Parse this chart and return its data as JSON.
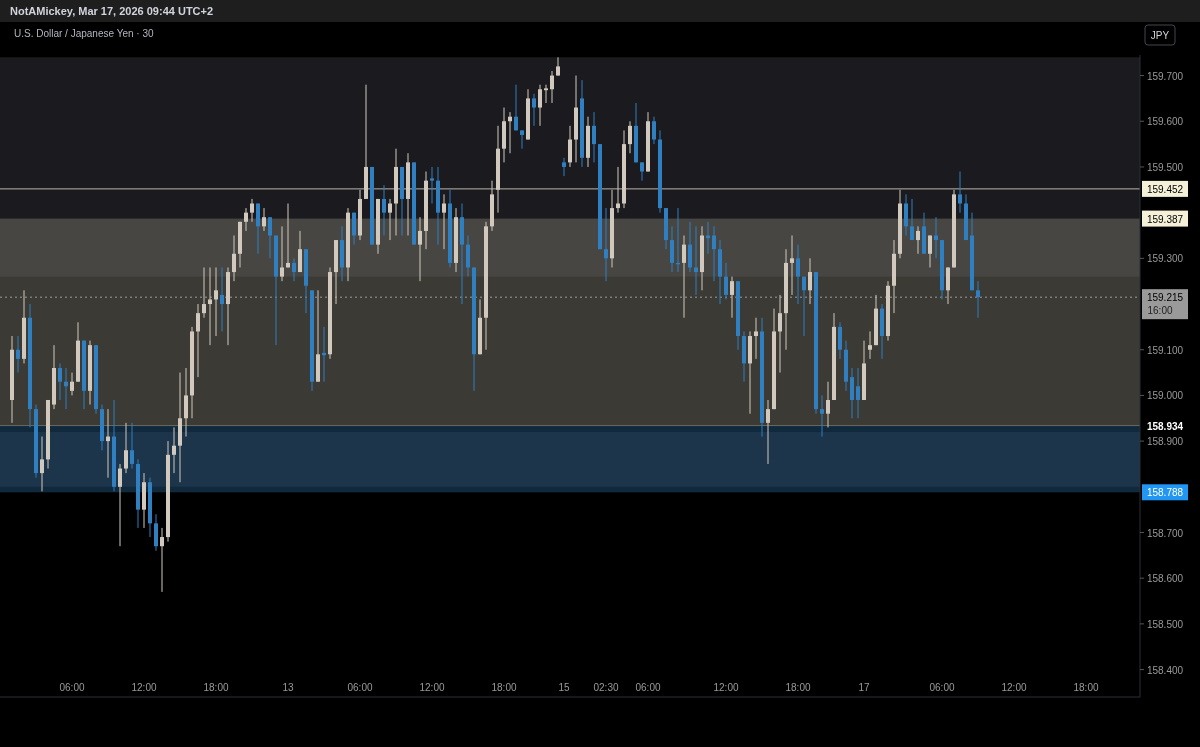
{
  "chart_data": {
    "type": "candlestick",
    "title": "U.S. Dollar / Japanese Yen · 30",
    "ylabel": "JPY",
    "annotations": [
      "NotAMickey, Mar 17, 2026 09:44 UTC+2",
      "16:00"
    ],
    "categories": [
      null,
      null,
      null,
      null,
      null,
      null,
      null,
      null,
      null,
      null,
      "06:00",
      null,
      null,
      null,
      null,
      null,
      null,
      null,
      null,
      null,
      null,
      null,
      "12:00",
      null,
      null,
      null,
      null,
      null,
      null,
      null,
      null,
      null,
      null,
      null,
      "18:00",
      null,
      null,
      null,
      null,
      null,
      null,
      null,
      null,
      null,
      null,
      null,
      "13",
      null,
      null,
      null,
      null,
      null,
      null,
      null,
      null,
      null,
      null,
      null,
      "06:00",
      null,
      null,
      null,
      null,
      null,
      null,
      null,
      null,
      null,
      null,
      null,
      "12:00",
      null,
      null,
      null,
      null,
      null,
      null,
      null,
      null,
      null,
      null,
      null,
      "18:00",
      null,
      null,
      null,
      null,
      null,
      null,
      null,
      null,
      null,
      "15",
      null,
      null,
      null,
      null,
      null,
      null,
      "02:30",
      null,
      null,
      null,
      null,
      null,
      null,
      "06:00",
      null,
      null,
      null,
      null,
      null,
      null,
      null,
      null,
      null,
      null,
      null,
      null,
      "12:00",
      null,
      null,
      null,
      null,
      null,
      null,
      null,
      null,
      null,
      null,
      null,
      "18:00",
      null,
      null,
      null,
      null,
      null,
      null,
      null,
      null,
      null,
      null,
      "17",
      null,
      null,
      null,
      null,
      null,
      null,
      null,
      null,
      null,
      null,
      null,
      null,
      "06:00",
      null,
      null,
      null,
      null,
      null,
      null,
      null,
      null,
      null,
      null,
      null,
      "12:00",
      null,
      null,
      null,
      null,
      null,
      null,
      null,
      null,
      null,
      null,
      null,
      "18:00",
      null,
      null,
      null,
      null,
      null,
      null,
      null,
      null
    ],
    "colors": [
      "#d1c9bd",
      "#2f7fc1",
      "#d1c9bd",
      "#2f7fc1",
      "#2f7fc1",
      "#d1c9bd",
      "#d1c9bd",
      "#d1c9bd",
      "#2f7fc1",
      "#2f7fc1",
      "#d1c9bd",
      "#d1c9bd",
      "#2f7fc1",
      "#d1c9bd",
      "#2f7fc1",
      "#2f7fc1",
      "#d1c9bd",
      "#2f7fc1",
      "#d1c9bd",
      "#d1c9bd",
      "#2f7fc1",
      "#2f7fc1",
      "#d1c9bd",
      "#2f7fc1",
      "#2f7fc1",
      "#d1c9bd",
      "#d1c9bd",
      "#d1c9bd",
      "#d1c9bd",
      "#d1c9bd",
      "#d1c9bd",
      "#d1c9bd",
      "#d1c9bd",
      "#d1c9bd",
      "#d1c9bd",
      "#2f7fc1",
      "#d1c9bd",
      "#d1c9bd",
      "#d1c9bd",
      "#d1c9bd",
      "#d1c9bd",
      "#2f7fc1",
      "#d1c9bd",
      "#2f7fc1",
      "#2f7fc1",
      "#d1c9bd",
      "#d1c9bd",
      "#2f7fc1",
      "#d1c9bd",
      "#2f7fc1",
      "#2f7fc1",
      "#d1c9bd",
      "#2f7fc1",
      "#d1c9bd",
      "#d1c9bd",
      "#2f7fc1",
      "#d1c9bd",
      "#2f7fc1",
      "#d1c9bd",
      "#d1c9bd",
      "#2f7fc1",
      "#d1c9bd",
      "#2f7fc1",
      "#d1c9bd",
      "#d1c9bd",
      "#2f7fc1",
      "#d1c9bd",
      "#2f7fc1",
      "#d1c9bd",
      "#d1c9bd",
      "#2f7fc1",
      "#2f7fc1",
      "#d1c9bd",
      "#2f7fc1",
      "#d1c9bd",
      "#2f7fc1",
      "#2f7fc1",
      "#2f7fc1",
      "#d1c9bd",
      "#d1c9bd",
      "#d1c9bd",
      "#d1c9bd",
      "#d1c9bd",
      "#d1c9bd",
      "#2f7fc1",
      "#2f7fc1",
      "#d1c9bd",
      "#2f7fc1",
      "#d1c9bd",
      "#d1c9bd",
      "#d1c9bd",
      "#d1c9bd",
      "#2f7fc1",
      "#d1c9bd",
      "#d1c9bd",
      "#2f7fc1",
      "#d1c9bd",
      "#2f7fc1",
      "#2f7fc1",
      "#2f7fc1",
      "#d1c9bd",
      "#d1c9bd",
      "#d1c9bd",
      "#d1c9bd",
      "#2f7fc1",
      "#2f7fc1",
      "#d1c9bd",
      "#2f7fc1",
      "#2f7fc1",
      "#2f7fc1",
      "#2f7fc1",
      "#2f7fc1",
      "#d1c9bd",
      "#2f7fc1",
      "#2f7fc1",
      "#d1c9bd",
      "#2f7fc1",
      "#2f7fc1",
      "#2f7fc1",
      "#2f7fc1",
      "#d1c9bd",
      "#2f7fc1",
      "#2f7fc1",
      "#d1c9bd",
      "#d1c9bd",
      "#2f7fc1",
      "#d1c9bd",
      "#d1c9bd",
      "#d1c9bd",
      "#d1c9bd",
      "#d1c9bd",
      "#2f7fc1",
      "#2f7fc1",
      "#d1c9bd",
      "#2f7fc1",
      "#2f7fc1",
      "#d1c9bd",
      "#d1c9bd",
      "#2f7fc1",
      "#2f7fc1",
      "#2f7fc1",
      "#2f7fc1",
      "#d1c9bd",
      "#d1c9bd",
      "#d1c9bd",
      "#2f7fc1",
      "#d1c9bd",
      "#d1c9bd",
      "#d1c9bd",
      "#2f7fc1",
      "#2f7fc1",
      "#d1c9bd",
      "#2f7fc1",
      "#d1c9bd",
      "#2f7fc1",
      "#2f7fc1",
      "#d1c9bd",
      "#d1c9bd",
      "#2f7fc1",
      "#2f7fc1",
      "#2f7fc1",
      "#2f7fc1",
      null,
      null,
      null,
      null,
      null,
      null,
      null,
      null,
      null,
      null,
      null,
      null,
      null,
      null,
      null,
      null,
      null,
      null,
      null,
      null,
      null,
      null,
      null,
      null,
      null,
      null
    ],
    "ohlc": [
      [
        158.99,
        159.13,
        158.94,
        159.1
      ],
      [
        159.1,
        159.13,
        159.05,
        159.08
      ],
      [
        159.08,
        159.23,
        159.07,
        159.17
      ],
      [
        159.17,
        159.2,
        158.93,
        158.97
      ],
      [
        158.97,
        158.98,
        158.82,
        158.83
      ],
      [
        158.83,
        158.91,
        158.79,
        158.86
      ],
      [
        158.86,
        158.99,
        158.84,
        158.99
      ],
      [
        158.98,
        159.11,
        158.97,
        159.06
      ],
      [
        159.06,
        159.07,
        158.99,
        159.03
      ],
      [
        159.03,
        159.06,
        158.97,
        159.02
      ],
      [
        159.01,
        159.05,
        159.0,
        159.03
      ],
      [
        159.03,
        159.16,
        159.03,
        159.12
      ],
      [
        159.12,
        159.12,
        158.97,
        159.01
      ],
      [
        159.01,
        159.12,
        158.98,
        159.11
      ],
      [
        159.11,
        159.11,
        158.96,
        158.97
      ],
      [
        158.97,
        158.98,
        158.88,
        158.9
      ],
      [
        158.9,
        158.97,
        158.82,
        158.91
      ],
      [
        158.91,
        158.99,
        158.79,
        158.8
      ],
      [
        158.8,
        158.85,
        158.67,
        158.84
      ],
      [
        158.84,
        158.94,
        158.83,
        158.88
      ],
      [
        158.88,
        158.94,
        158.84,
        158.85
      ],
      [
        158.85,
        158.86,
        158.71,
        158.75
      ],
      [
        158.75,
        158.83,
        158.71,
        158.81
      ],
      [
        158.81,
        158.82,
        158.69,
        158.72
      ],
      [
        158.72,
        158.74,
        158.66,
        158.67
      ],
      [
        158.67,
        158.71,
        158.57,
        158.69
      ],
      [
        158.69,
        158.9,
        158.68,
        158.87
      ],
      [
        158.87,
        158.93,
        158.83,
        158.89
      ],
      [
        158.89,
        159.05,
        158.81,
        158.95
      ],
      [
        158.95,
        159.06,
        158.91,
        159.0
      ],
      [
        159.0,
        159.15,
        158.95,
        159.14
      ],
      [
        159.14,
        159.2,
        159.04,
        159.18
      ],
      [
        159.18,
        159.28,
        159.17,
        159.2
      ],
      [
        159.2,
        159.28,
        159.11,
        159.21
      ],
      [
        159.21,
        159.28,
        159.13,
        159.23
      ],
      [
        159.22,
        159.28,
        159.14,
        159.2
      ],
      [
        159.2,
        159.28,
        159.11,
        159.27
      ],
      [
        159.27,
        159.35,
        159.25,
        159.31
      ],
      [
        159.31,
        159.38,
        159.28,
        159.38
      ],
      [
        159.38,
        159.41,
        159.36,
        159.4
      ],
      [
        159.4,
        159.43,
        159.38,
        159.42
      ],
      [
        159.42,
        159.42,
        159.31,
        159.37
      ],
      [
        159.37,
        159.41,
        159.36,
        159.39
      ],
      [
        159.39,
        159.39,
        159.3,
        159.35
      ],
      [
        159.35,
        159.35,
        159.11,
        159.26
      ],
      [
        159.26,
        159.37,
        159.25,
        159.28
      ],
      [
        159.28,
        159.42,
        159.28,
        159.29
      ],
      [
        159.29,
        159.3,
        159.25,
        159.27
      ],
      [
        159.27,
        159.36,
        159.27,
        159.32
      ],
      [
        159.32,
        159.32,
        159.18,
        159.24
      ],
      [
        159.23,
        159.23,
        159.01,
        159.03
      ],
      [
        159.03,
        159.23,
        159.03,
        159.09
      ],
      [
        159.093,
        159.15,
        159.03,
        159.088
      ],
      [
        159.09,
        159.28,
        159.08,
        159.27
      ],
      [
        159.27,
        159.34,
        159.2,
        159.34
      ],
      [
        159.34,
        159.37,
        159.25,
        159.28
      ],
      [
        159.28,
        159.41,
        159.25,
        159.4
      ],
      [
        159.4,
        159.4,
        159.33,
        159.35
      ],
      [
        159.35,
        159.45,
        159.34,
        159.43
      ],
      [
        159.43,
        159.68,
        159.43,
        159.5
      ],
      [
        159.5,
        159.5,
        159.33,
        159.33
      ],
      [
        159.33,
        159.43,
        159.31,
        159.43
      ],
      [
        159.43,
        159.46,
        159.35,
        159.4
      ],
      [
        159.4,
        159.43,
        159.34,
        159.42
      ],
      [
        159.42,
        159.54,
        159.35,
        159.5
      ],
      [
        159.5,
        159.5,
        159.35,
        159.43
      ],
      [
        159.43,
        159.53,
        159.35,
        159.51
      ],
      [
        159.51,
        159.51,
        159.33,
        159.33
      ],
      [
        159.33,
        159.39,
        159.25,
        159.36
      ],
      [
        159.36,
        159.49,
        159.32,
        159.47
      ],
      [
        159.475,
        159.5,
        159.42,
        159.47
      ],
      [
        159.47,
        159.5,
        159.33,
        159.4
      ],
      [
        159.4,
        159.44,
        159.32,
        159.42
      ],
      [
        159.42,
        159.45,
        159.28,
        159.29
      ],
      [
        159.29,
        159.41,
        159.27,
        159.39
      ],
      [
        159.39,
        159.42,
        159.2,
        159.33
      ],
      [
        159.33,
        159.35,
        159.26,
        159.28
      ],
      [
        159.28,
        159.28,
        159.01,
        159.09
      ],
      [
        159.09,
        159.21,
        159.09,
        159.17
      ],
      [
        159.17,
        159.38,
        159.1,
        159.37
      ],
      [
        159.37,
        159.47,
        159.36,
        159.44
      ],
      [
        159.45,
        159.59,
        159.4,
        159.54
      ],
      [
        159.54,
        159.63,
        159.51,
        159.6
      ],
      [
        159.6,
        159.62,
        159.53,
        159.61
      ],
      [
        159.61,
        159.68,
        159.58,
        159.58
      ],
      [
        159.58,
        159.58,
        159.54,
        159.57
      ],
      [
        159.56,
        159.67,
        159.56,
        159.65
      ],
      [
        159.65,
        159.66,
        159.59,
        159.63
      ],
      [
        159.63,
        159.68,
        159.59,
        159.67
      ],
      [
        159.668,
        159.68,
        159.64,
        159.672
      ],
      [
        159.67,
        159.71,
        159.64,
        159.7
      ],
      [
        159.7,
        159.74,
        159.7,
        159.72
      ],
      [
        159.51,
        159.52,
        159.48,
        159.5
      ],
      [
        159.51,
        159.59,
        159.5,
        159.56
      ],
      [
        159.56,
        159.7,
        159.51,
        159.63
      ],
      [
        159.65,
        159.69,
        159.5,
        159.52
      ],
      [
        159.52,
        159.61,
        159.5,
        159.59
      ],
      [
        159.59,
        159.62,
        159.51,
        159.55
      ],
      [
        159.55,
        159.55,
        159.32,
        159.32
      ],
      [
        159.32,
        159.41,
        159.25,
        159.3
      ],
      [
        159.3,
        159.45,
        159.28,
        159.41
      ],
      [
        159.41,
        159.5,
        159.4,
        159.42
      ],
      [
        159.42,
        159.58,
        159.41,
        159.55
      ],
      [
        159.55,
        159.6,
        159.53,
        159.59
      ],
      [
        159.59,
        159.64,
        159.51,
        159.51
      ],
      [
        159.51,
        159.51,
        159.47,
        159.49
      ],
      [
        159.49,
        159.62,
        159.49,
        159.6
      ],
      [
        159.6,
        159.61,
        159.55,
        159.56
      ],
      [
        159.56,
        159.58,
        159.4,
        159.41
      ],
      [
        159.41,
        159.41,
        159.32,
        159.34
      ],
      [
        159.34,
        159.37,
        159.27,
        159.29
      ],
      [
        159.29,
        159.41,
        159.27,
        159.287
      ],
      [
        159.29,
        159.35,
        159.17,
        159.33
      ],
      [
        159.33,
        159.38,
        159.27,
        159.28
      ],
      [
        159.28,
        159.37,
        159.22,
        159.27
      ],
      [
        159.27,
        159.37,
        159.23,
        159.35
      ],
      [
        159.35,
        159.38,
        159.31,
        159.344
      ],
      [
        159.35,
        159.37,
        159.25,
        159.32
      ],
      [
        159.32,
        159.34,
        159.2,
        159.26
      ],
      [
        159.26,
        159.29,
        159.21,
        159.22
      ],
      [
        159.22,
        159.26,
        159.17,
        159.25
      ],
      [
        159.25,
        159.25,
        159.1,
        159.13
      ],
      [
        159.13,
        159.14,
        159.03,
        159.07
      ],
      [
        159.07,
        159.14,
        158.96,
        159.13
      ],
      [
        159.13,
        159.17,
        159.08,
        159.14
      ],
      [
        159.14,
        159.17,
        158.91,
        158.94
      ],
      [
        158.94,
        158.99,
        158.85,
        158.97
      ],
      [
        158.97,
        159.19,
        158.97,
        159.14
      ],
      [
        159.14,
        159.22,
        159.05,
        159.18
      ],
      [
        159.18,
        159.32,
        159.1,
        159.29
      ],
      [
        159.29,
        159.35,
        159.22,
        159.3
      ],
      [
        159.3,
        159.33,
        159.2,
        159.26
      ],
      [
        159.26,
        159.26,
        159.13,
        159.23
      ],
      [
        159.23,
        159.3,
        159.2,
        159.27
      ],
      [
        159.27,
        159.27,
        158.96,
        158.97
      ],
      [
        158.97,
        159.0,
        158.91,
        158.96
      ],
      [
        158.96,
        159.03,
        158.93,
        158.99
      ],
      [
        158.99,
        159.18,
        158.99,
        159.15
      ],
      [
        159.15,
        159.16,
        159.08,
        159.1
      ],
      [
        159.1,
        159.12,
        159.01,
        159.03
      ],
      [
        159.04,
        159.06,
        158.95,
        158.99
      ],
      [
        159.02,
        159.06,
        158.95,
        158.99
      ],
      [
        158.99,
        159.12,
        158.99,
        159.07
      ],
      [
        159.1,
        159.14,
        159.08,
        159.11
      ],
      [
        159.11,
        159.22,
        159.11,
        159.19
      ],
      [
        159.19,
        159.2,
        159.08,
        159.13
      ],
      [
        159.13,
        159.25,
        159.12,
        159.24
      ],
      [
        159.24,
        159.34,
        159.18,
        159.31
      ],
      [
        159.31,
        159.45,
        159.3,
        159.42
      ],
      [
        159.42,
        159.44,
        159.35,
        159.37
      ],
      [
        159.37,
        159.43,
        159.34,
        159.34
      ],
      [
        159.34,
        159.37,
        159.31,
        159.36
      ],
      [
        159.37,
        159.4,
        159.31,
        159.31
      ],
      [
        159.31,
        159.35,
        159.28,
        159.35
      ],
      [
        159.35,
        159.39,
        159.3,
        159.34
      ],
      [
        159.34,
        159.34,
        159.21,
        159.23
      ],
      [
        159.23,
        159.28,
        159.2,
        159.28
      ],
      [
        159.28,
        159.45,
        159.28,
        159.44
      ],
      [
        159.44,
        159.49,
        159.4,
        159.42
      ],
      [
        159.42,
        159.44,
        159.34,
        159.34
      ],
      [
        159.35,
        159.4,
        159.23,
        159.23
      ],
      [
        159.23,
        159.25,
        159.17,
        159.215
      ],
      null,
      null,
      null,
      null,
      null,
      null,
      null,
      null,
      null,
      null,
      null,
      null,
      null,
      null,
      null,
      null,
      null,
      null,
      null,
      null,
      null,
      null,
      null,
      null,
      null,
      null
    ],
    "ylim": [
      158.34,
      159.745
    ],
    "yticks": [
      {
        "value": 158.4,
        "label": "158.400"
      },
      {
        "value": 158.5,
        "label": "158.500"
      },
      {
        "value": 158.6,
        "label": "158.600"
      },
      {
        "value": 158.7,
        "label": "158.700"
      },
      {
        "value": 158.9,
        "label": "158.900"
      },
      {
        "value": 159.0,
        "label": "159.000"
      },
      {
        "value": 159.1,
        "label": "159.100"
      },
      {
        "value": 159.3,
        "label": "159.300"
      },
      {
        "value": 159.5,
        "label": "159.500"
      },
      {
        "value": 159.6,
        "label": "159.600"
      },
      {
        "value": 159.7,
        "label": "159.700"
      }
    ],
    "bands": [
      {
        "axis": "y",
        "from": 159.26,
        "to": 159.74,
        "color": "#1b1b1f"
      },
      {
        "axis": "y",
        "from": 158.8,
        "to": 158.92,
        "color": "#1b1b1f"
      },
      {
        "axis": "y",
        "from": 158.934,
        "to": 159.387,
        "color": "#6b6a5e",
        "label": "159.387"
      },
      {
        "axis": "y",
        "from": 158.788,
        "to": 158.934,
        "color": "#1f4a70",
        "label": "158.788"
      }
    ],
    "ref_lines": [
      {
        "axis": "y",
        "value": 159.452,
        "label": "159.452",
        "color": "#b8b5a8",
        "line_style": "solid"
      },
      {
        "axis": "y",
        "value": 158.934,
        "label": "158.934",
        "color": "#6b6a5e",
        "line_style": "solid"
      },
      {
        "axis": "y",
        "value": 159.215,
        "label": "159.215",
        "color": "#9a9a9a",
        "line_style": "dotted"
      }
    ],
    "grid": false
  }
}
